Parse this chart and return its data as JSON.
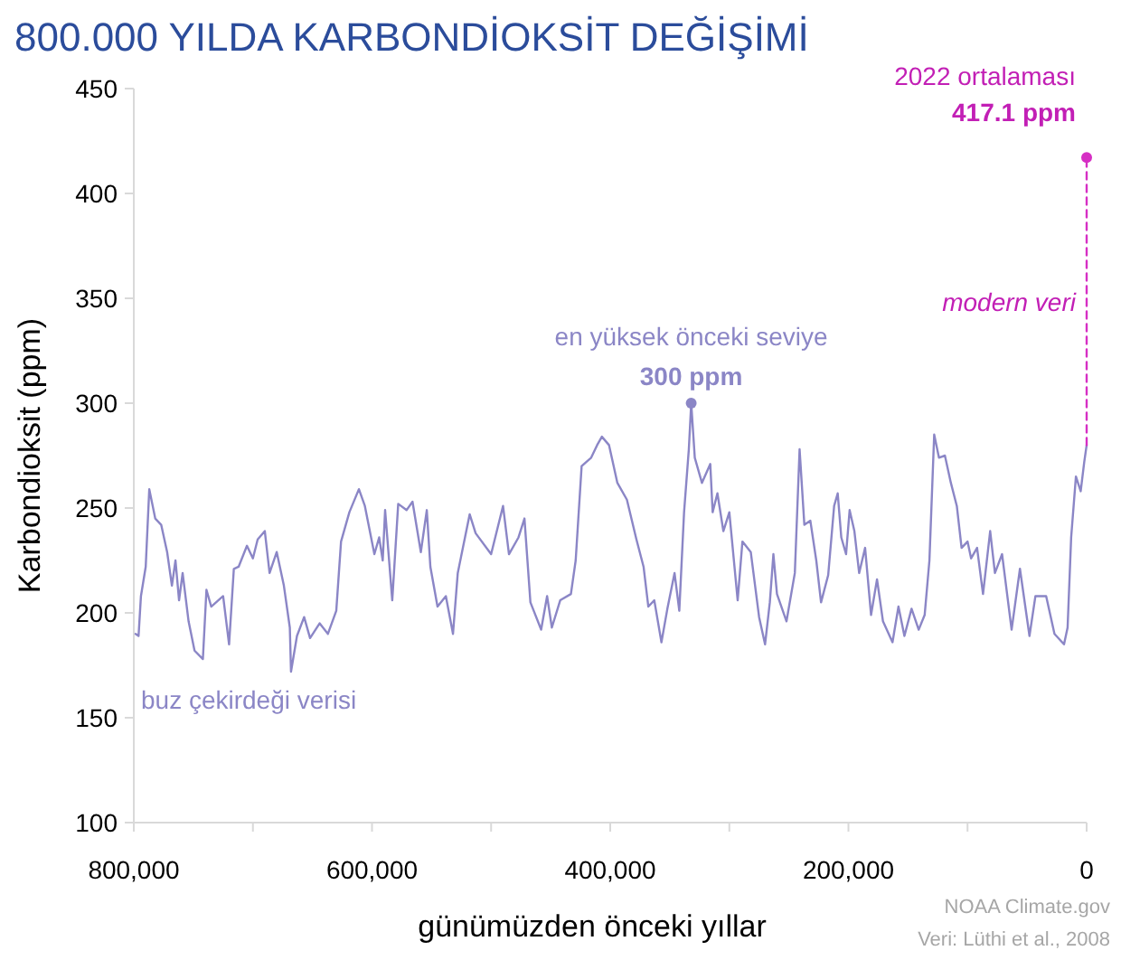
{
  "chart_data": {
    "type": "line",
    "title": "800.000 YILDA KARBONDİOKSİT DEĞİŞİMİ",
    "xlabel": "günümüzden önceki yıllar",
    "ylabel": "Karbondioksit (ppm)",
    "xlim": [
      800000,
      0
    ],
    "xticks": [
      {
        "value": 800000,
        "label": "800,000"
      },
      {
        "value": 700000,
        "label": null
      },
      {
        "value": 600000,
        "label": "600,000"
      },
      {
        "value": 500000,
        "label": null
      },
      {
        "value": 400000,
        "label": "400,000"
      },
      {
        "value": 300000,
        "label": null
      },
      {
        "value": 200000,
        "label": "200,000"
      },
      {
        "value": 100000,
        "label": null
      },
      0
    ],
    "ylim": [
      100,
      450
    ],
    "yticks": [
      100,
      150,
      200,
      250,
      300,
      350,
      400,
      450
    ],
    "grid": false,
    "series": [
      {
        "color": "#8b86c6",
        "x": [
          798500,
          796000,
          794000,
          790000,
          787000,
          782000,
          777000,
          772000,
          768000,
          765000,
          762000,
          759000,
          754000,
          749000,
          742000,
          739000,
          735000,
          725000,
          720000,
          716000,
          712000,
          705000,
          700000,
          696000,
          690000,
          686000,
          680000,
          674000,
          669000,
          668000,
          663000,
          657000,
          652000,
          644000,
          637000,
          630000,
          626000,
          619000,
          611000,
          606000,
          598000,
          594000,
          591000,
          589000,
          583000,
          578000,
          571000,
          566000,
          559000,
          554000,
          551000,
          545000,
          538000,
          532000,
          528000,
          518000,
          513000,
          500000,
          490000,
          485000,
          477000,
          472000,
          467000,
          458000,
          453000,
          449000,
          442000,
          433000,
          429000,
          424000,
          416000,
          411000,
          407000,
          401000,
          394000,
          386000,
          378000,
          372000,
          368000,
          363000,
          357000,
          352000,
          346000,
          342000,
          338000,
          334000,
          332000,
          329000,
          323000,
          316000,
          314000,
          310000,
          305000,
          300000,
          293000,
          289000,
          282000,
          275000,
          270000,
          266000,
          263000,
          260000,
          252000,
          245000,
          241000,
          237000,
          232000,
          227000,
          223000,
          217000,
          212000,
          209000,
          206000,
          202000,
          199000,
          195000,
          191000,
          186000,
          181000,
          176000,
          171000,
          163000,
          158000,
          153000,
          147000,
          141000,
          136000,
          132000,
          128000,
          124000,
          119000,
          114000,
          109000,
          105000,
          100000,
          97000,
          92000,
          87000,
          81000,
          77000,
          71000,
          63000,
          56000,
          48000,
          43000,
          34000,
          27000,
          19000,
          16000,
          13000,
          9000,
          5000,
          2000,
          0
        ],
        "values": [
          190,
          189,
          208,
          222,
          259,
          245,
          242,
          229,
          213,
          225,
          206,
          219,
          196,
          182,
          178,
          211,
          203,
          208,
          185,
          221,
          222,
          232,
          226,
          235,
          239,
          219,
          229,
          213,
          193,
          172,
          189,
          198,
          188,
          195,
          190,
          201,
          234,
          248,
          259,
          251,
          228,
          236,
          225,
          249,
          206,
          252,
          249,
          253,
          229,
          249,
          222,
          203,
          208,
          190,
          219,
          247,
          238,
          228,
          251,
          228,
          236,
          245,
          205,
          192,
          208,
          193,
          206,
          209,
          225,
          270,
          274,
          280,
          284,
          280,
          262,
          254,
          235,
          222,
          203,
          206,
          186,
          202,
          219,
          201,
          248,
          278,
          300,
          274,
          262,
          271,
          248,
          257,
          239,
          248,
          206,
          234,
          229,
          198,
          185,
          205,
          228,
          209,
          196,
          219,
          278,
          242,
          244,
          225,
          205,
          218,
          251,
          257,
          236,
          228,
          249,
          239,
          219,
          231,
          199,
          216,
          196,
          186,
          203,
          189,
          202,
          192,
          199,
          225,
          285,
          274,
          275,
          262,
          251,
          231,
          234,
          226,
          231,
          209,
          239,
          219,
          228,
          192,
          221,
          189,
          208,
          208,
          190,
          185,
          193,
          236,
          265,
          258,
          272,
          280
        ]
      },
      {
        "type": "line",
        "color": "#d62fc4",
        "line_style": "dashed",
        "x": [
          0,
          0
        ],
        "values": [
          280,
          417.1
        ]
      },
      {
        "type": "scatter",
        "color": "#d62fc4",
        "marker": "circle",
        "x": [
          0
        ],
        "values": [
          417.1
        ]
      },
      {
        "type": "scatter",
        "color": "#8b86c6",
        "marker": "circle",
        "x": [
          332000
        ],
        "values": [
          300
        ]
      }
    ],
    "annotations": [
      "2022 ortalaması",
      "417.1 ppm",
      "modern veri",
      {
        "text": "en yüksek önceki seviye",
        "x": 332000,
        "y": 300
      },
      {
        "text": "300 ppm",
        "x": 332000,
        "y": 300
      },
      "buz çekirdeği verisi",
      "NOAA Climate.gov",
      "Veri: Lüthi et al., 2008"
    ]
  }
}
